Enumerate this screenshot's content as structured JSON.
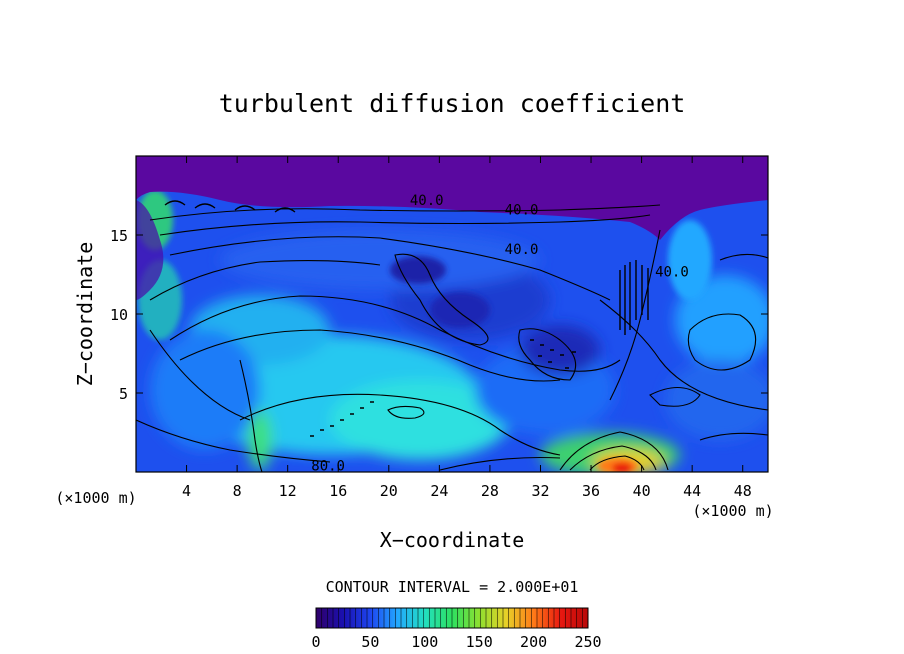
{
  "chart_data": {
    "type": "heatmap",
    "title": "turbulent diffusion coefficient",
    "xlabel": "X−coordinate",
    "ylabel": "Z−coordinate",
    "xlim": [
      0,
      50
    ],
    "ylim": [
      0,
      20
    ],
    "x_ticks": [
      4,
      8,
      12,
      16,
      20,
      24,
      28,
      32,
      36,
      40,
      44,
      48
    ],
    "y_ticks": [
      5,
      10,
      15
    ],
    "x_unit": "(×1000 m)",
    "z_unit": "(×1000 m)",
    "contour_interval_text": "CONTOUR INTERVAL = 2.000E+01",
    "contour_labels": [
      {
        "text": "40.0",
        "x": 23,
        "z": 17.2
      },
      {
        "text": "40.0",
        "x": 30.5,
        "z": 16.6
      },
      {
        "text": "40.0",
        "x": 30.5,
        "z": 14.1
      },
      {
        "text": "80.0",
        "x": 15.2,
        "z": 0.4
      },
      {
        "text": "40.0",
        "x": 42.4,
        "z": 12.7
      }
    ],
    "colorbar": {
      "min": 0,
      "max": 250,
      "ticks": [
        0,
        50,
        100,
        150,
        200,
        250
      ],
      "colors": [
        "#30006a",
        "#1a10b0",
        "#1e46f0",
        "#23a8ff",
        "#22e0c0",
        "#2ee060",
        "#8ee030",
        "#e8d028",
        "#ff7a18",
        "#e81810",
        "#b80808"
      ]
    }
  }
}
